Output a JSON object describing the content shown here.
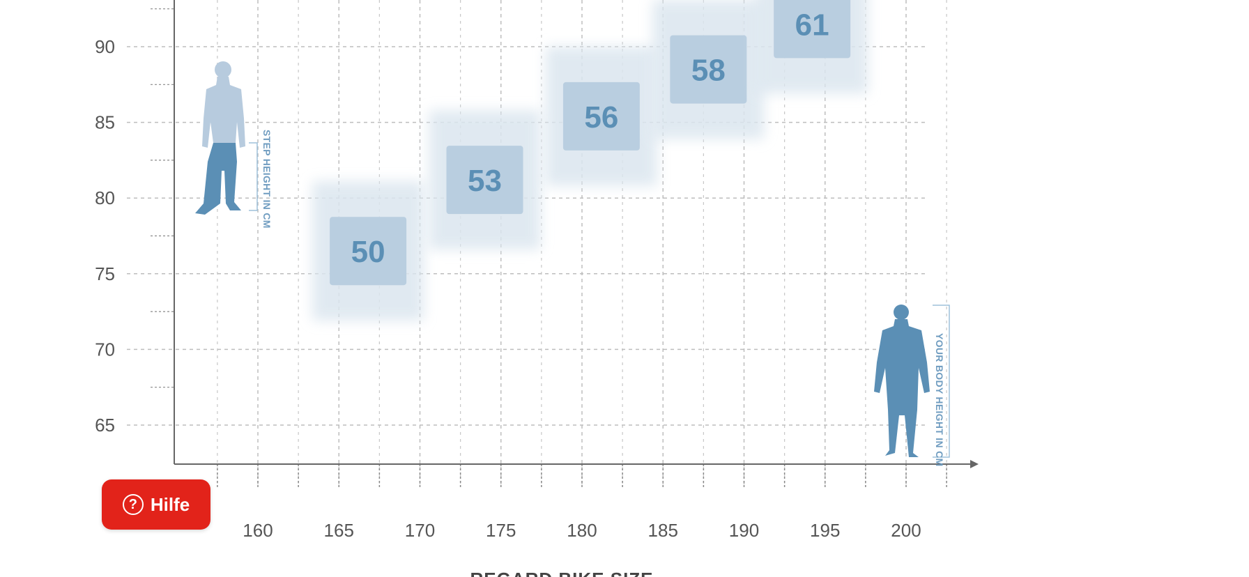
{
  "chart_data": {
    "type": "scatter",
    "title": "",
    "xlabel": "YOUR BODY HEIGHT IN CM",
    "ylabel": "STEP HEIGHT IN CM",
    "x_ticks": [
      "160",
      "165",
      "170",
      "175",
      "180",
      "185",
      "190",
      "195",
      "200"
    ],
    "y_ticks": [
      "90",
      "85",
      "80",
      "75",
      "70",
      "65"
    ],
    "xlim": [
      155,
      203
    ],
    "ylim": [
      62.5,
      93
    ],
    "grid": true,
    "size_boxes": [
      {
        "label": "50",
        "x": 166.8,
        "y": 76.5
      },
      {
        "label": "53",
        "x": 174,
        "y": 81.2
      },
      {
        "label": "56",
        "x": 181.2,
        "y": 85.4
      },
      {
        "label": "58",
        "x": 187.8,
        "y": 88.5
      },
      {
        "label": "61",
        "x": 194.2,
        "y": 91.5
      }
    ],
    "bottom_title": "REGARD BIKE SIZE",
    "colors": {
      "box": "#b9cee0",
      "box_glow": "#dbe6ef",
      "box_text": "#5b8fb5",
      "figure_dark": "#5b8fb5",
      "figure_light": "#b7cbde",
      "grid": "#bdbdbd"
    }
  },
  "help": {
    "label": "Hilfe",
    "icon": "question-circle-icon"
  }
}
